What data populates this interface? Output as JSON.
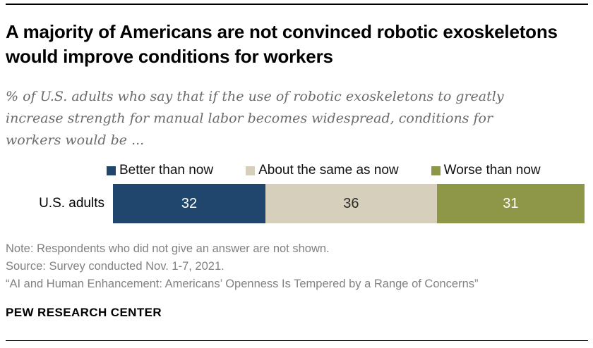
{
  "header": {
    "title": "A majority of Americans are not convinced robotic exoskeletons would improve conditions for workers",
    "subtitle": "% of U.S. adults who say that if the use of robotic exoskeletons to greatly increase strength for manual labor becomes widespread, conditions for workers would be ..."
  },
  "chart_data": {
    "type": "bar",
    "orientation": "horizontal",
    "stacked": true,
    "categories": [
      "U.S. adults"
    ],
    "series": [
      {
        "name": "Better than now",
        "values": [
          32
        ],
        "color": "#21466e",
        "label_color": "#ffffff"
      },
      {
        "name": "About the same as now",
        "values": [
          36
        ],
        "color": "#d5cfbc",
        "label_color": "#2b2b2b"
      },
      {
        "name": "Worse than now",
        "values": [
          31
        ],
        "color": "#8d9747",
        "label_color": "#ffffff"
      }
    ],
    "legend_position": "top",
    "xlim": [
      0,
      99
    ],
    "grid": false
  },
  "footer": {
    "note": "Note: Respondents who did not give an answer are not shown.",
    "source": "Source: Survey conducted Nov. 1-7, 2021.",
    "citation": "“AI and Human Enhancement: Americans’ Openness Is Tempered by a Range of Concerns”",
    "brand": "PEW RESEARCH CENTER"
  }
}
